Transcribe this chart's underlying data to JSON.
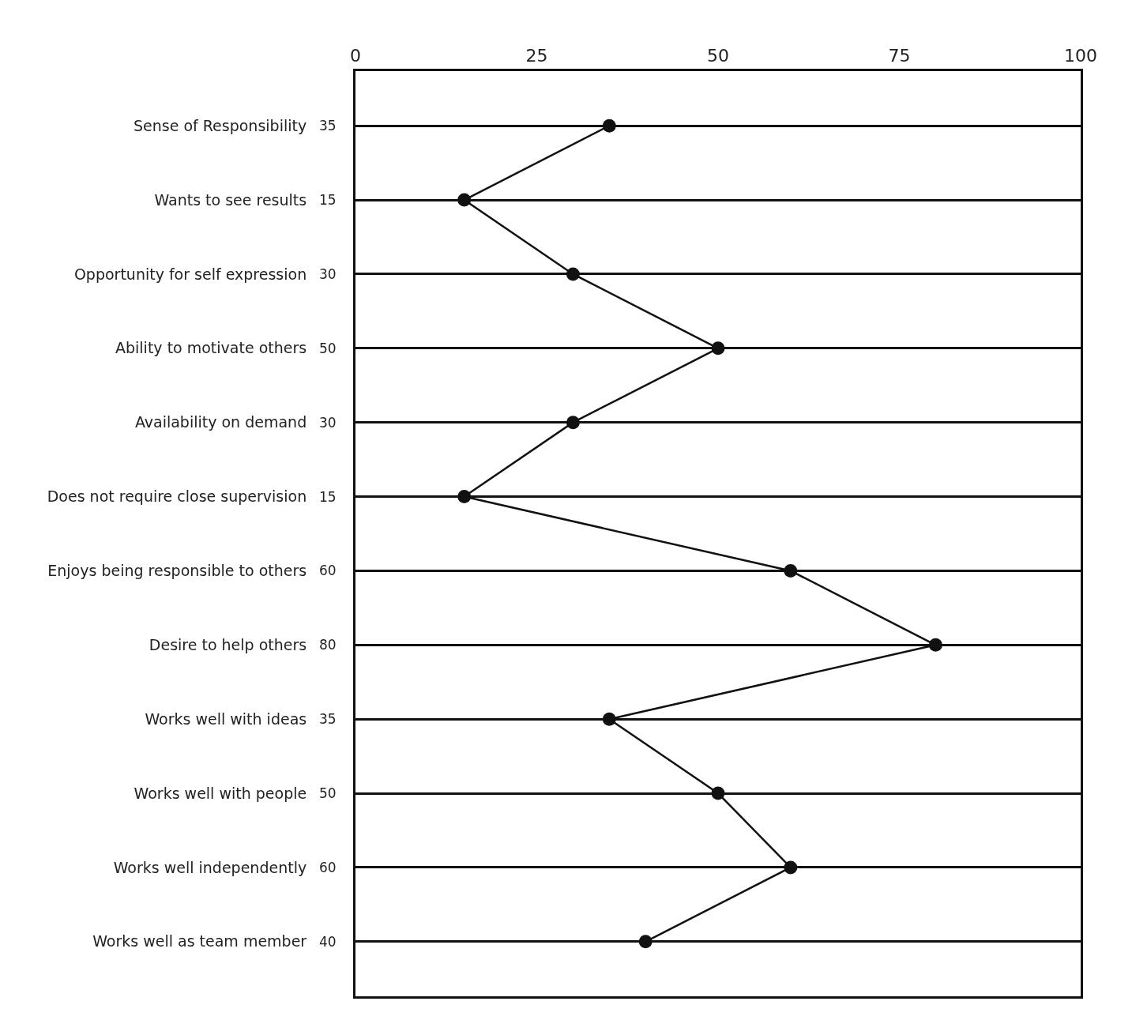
{
  "chart_data": {
    "type": "line",
    "orientation": "horizontal",
    "categories": [
      "Sense of Responsibility",
      "Wants to see results",
      "Opportunity for self expression",
      "Ability to motivate others",
      "Availability on demand",
      "Does not require close supervision",
      "Enjoys being responsible to others",
      "Desire to help others",
      "Works well with ideas",
      "Works well with people",
      "Works well independently",
      "Works well as team member"
    ],
    "values": [
      35,
      15,
      30,
      50,
      30,
      15,
      60,
      80,
      35,
      50,
      60,
      40
    ],
    "color": "#111111",
    "marker": "circle",
    "line_style": "solid",
    "data_labels": true,
    "grid": "y",
    "xlim": [
      0,
      100
    ],
    "xticks": [
      0,
      25,
      50,
      75,
      100
    ]
  }
}
